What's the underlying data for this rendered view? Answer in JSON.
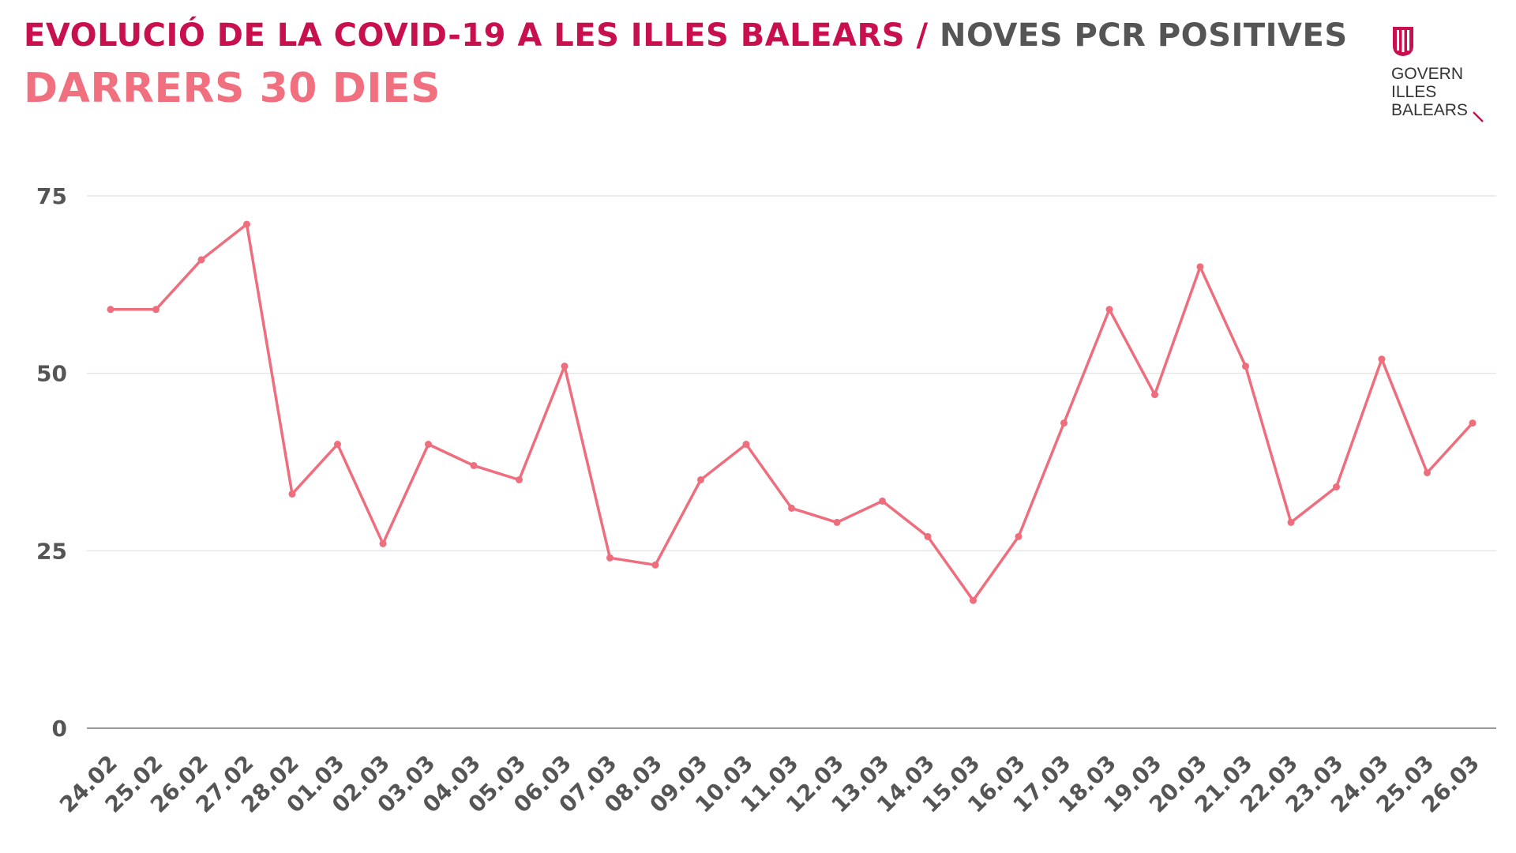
{
  "header": {
    "title_main": "EVOLUCIÓ DE LA COVID-19 A LES ILLES BALEARS",
    "title_separator": "/",
    "title_secondary": "NOVES PCR POSITIVES",
    "subtitle": "DARRERS 30 DIES"
  },
  "logo": {
    "line1": "GOVERN",
    "line2": "ILLES",
    "line3": "BALEARS"
  },
  "colors": {
    "title": "#c8104e",
    "secondary_title": "#555555",
    "subtitle": "#f07080",
    "line": "#ee6e7e",
    "grid": "#e6e6e6",
    "axis_text": "#555555"
  },
  "chart_data": {
    "type": "line",
    "title": "EVOLUCIÓ DE LA COVID-19 A LES ILLES BALEARS / NOVES PCR POSITIVES",
    "subtitle": "DARRERS 30 DIES",
    "xlabel": "",
    "ylabel": "",
    "ylim": [
      0,
      75
    ],
    "yticks": [
      0,
      25,
      50,
      75
    ],
    "grid": true,
    "legend": "none",
    "x": [
      "24.02",
      "25.02",
      "26.02",
      "27.02",
      "28.02",
      "01.03",
      "02.03",
      "03.03",
      "04.03",
      "05.03",
      "06.03",
      "07.03",
      "08.03",
      "09.03",
      "10.03",
      "11.03",
      "12.03",
      "13.03",
      "14.03",
      "15.03",
      "16.03",
      "17.03",
      "18.03",
      "19.03",
      "20.03",
      "21.03",
      "22.03",
      "23.03",
      "24.03",
      "25.03",
      "26.03"
    ],
    "series": [
      {
        "values": [
          59,
          59,
          66,
          71,
          33,
          40,
          26,
          40,
          37,
          35,
          51,
          24,
          23,
          35,
          40,
          31,
          29,
          32,
          27,
          18,
          27,
          43,
          59,
          47,
          65,
          51,
          29,
          34,
          52,
          36,
          43
        ]
      }
    ]
  }
}
